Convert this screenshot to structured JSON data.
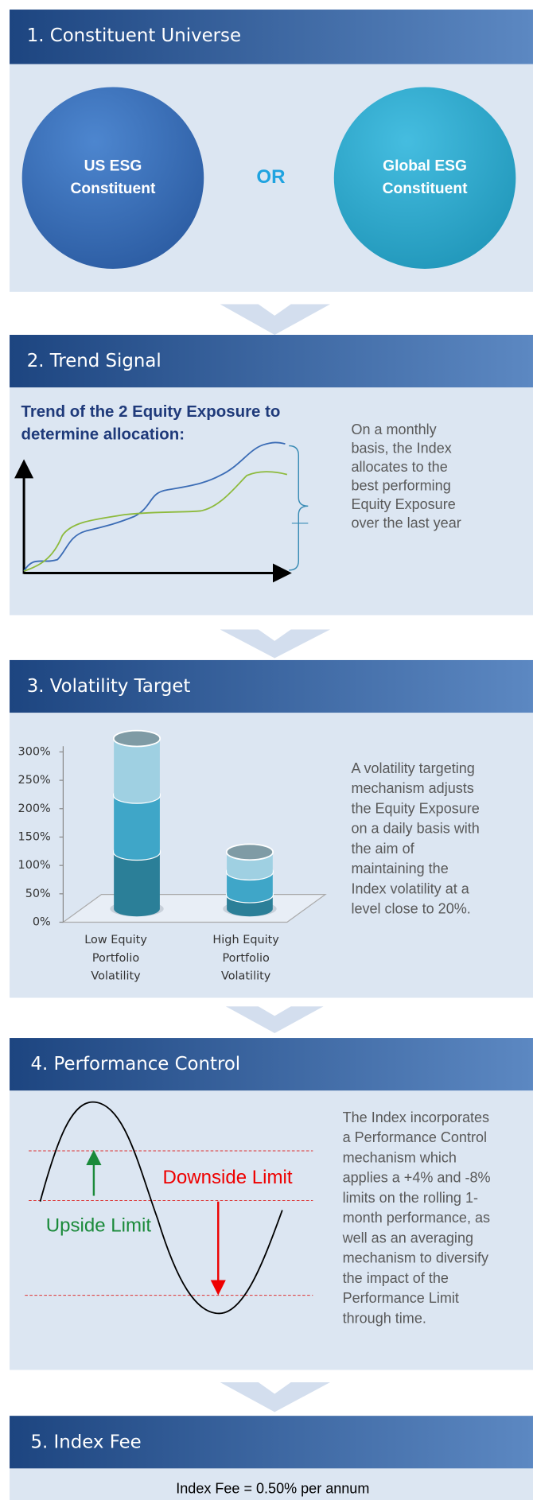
{
  "sections": [
    {
      "title": "1. Constituent Universe",
      "left": [
        "US ESG",
        "Constituent"
      ],
      "middle": "OR",
      "right": [
        "Global ESG",
        "Constituent"
      ]
    },
    {
      "title": "2. Trend Signal",
      "subtitle": [
        "Trend of the 2 Equity Exposure to",
        "determine allocation:"
      ],
      "text_lines": [
        "On a monthly",
        "basis, the Index",
        "allocates to the",
        "best performing",
        "Equity Exposure",
        "over the last year"
      ]
    },
    {
      "title": "3. Volatility Target",
      "chart_data": {
        "type": "bar",
        "stacked": true,
        "categories": [
          "Low Equity Portfolio Volatility",
          "High Equity Portfolio Volatility"
        ],
        "series": [
          {
            "color": "#2b7f98",
            "values": [
              100,
              25
            ]
          },
          {
            "color": "#3fa6c8",
            "values": [
              100,
              40
            ]
          },
          {
            "color": "#9fd0e2",
            "values": [
              100,
              35
            ]
          }
        ],
        "ylim": [
          0,
          300
        ],
        "yticks": [
          {
            "value": 0,
            "label": "0%"
          },
          {
            "value": 50,
            "label": "50%"
          },
          {
            "value": 100,
            "label": "100%"
          },
          {
            "value": 150,
            "label": "150%"
          },
          {
            "value": 200,
            "label": "200%"
          },
          {
            "value": 250,
            "label": "250%"
          },
          {
            "value": 300,
            "label": "300%"
          }
        ]
      },
      "text_lines": [
        "A volatility targeting",
        "mechanism adjusts",
        "the Equity Exposure",
        "on a daily basis with",
        "the aim of",
        "maintaining the",
        "Index volatility at a",
        "level close to 20%."
      ]
    },
    {
      "title": "4. Performance Control",
      "upside": "Upside Limit",
      "downside": "Downside Limit",
      "text_lines": [
        "The Index incorporates",
        "a Performance Control",
        "mechanism which",
        "applies a +4% and -8%",
        "limits on the rolling 1-",
        "month performance, as",
        "well as an averaging",
        "mechanism to diversify",
        "the impact of the",
        "Performance Limit",
        "through time."
      ]
    },
    {
      "title": "5. Index Fee",
      "text": "Index Fee = 0.50% per annum"
    }
  ]
}
